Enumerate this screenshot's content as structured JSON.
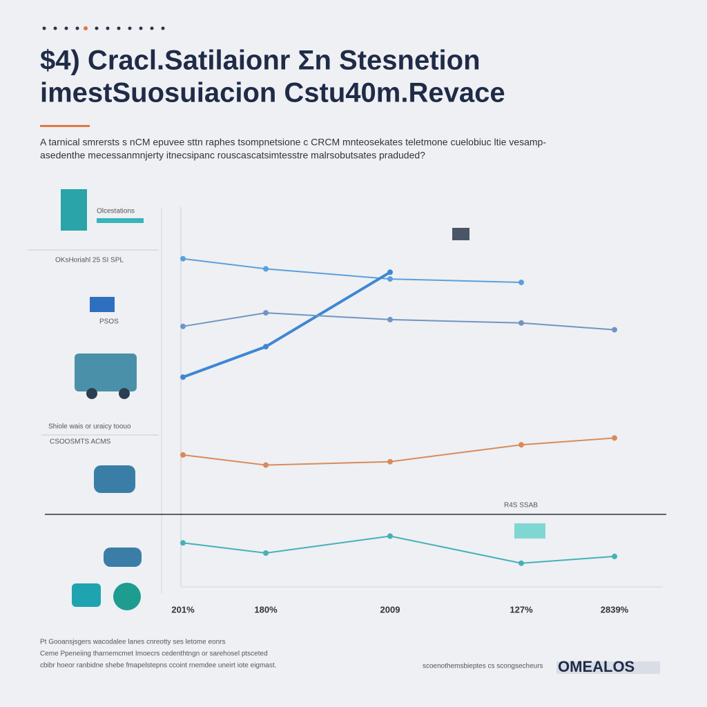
{
  "chart_data": {
    "type": "line",
    "title": "$4) Cracl.Satilaionr Ʃn Stesnetion",
    "subtitle": "imestSuosuiacion Cstu40m.Revace",
    "description": [
      "A tarnical smrersts s nCM epuvee sttn raphes tsompnetsione c CRCM mnteosekates teletmone cuelobiuc ltie vesamp-",
      "asedenthe mecessanmnjerty itnecsipanc rouscascatsimtesstre malrsobutsates praduded?"
    ],
    "annotations": [
      "OKsHoriahl 25 SI SPL",
      "Olcestations",
      "PSOS",
      "Shiole wais or uraicy toouo",
      "CSOOSMTS ACMS",
      "R4S SSAB"
    ],
    "footnotes": [
      "Pt Gooansjsgers wacodalee lanes cnreotty ses letome eonrs",
      "Ceme Ppeneiing tharnemcmet Imoecrs cedenthtngn or sarehosel ptsceted",
      "cbibr hoeor ranbidne shebe fmapelstepns ccoint rnemdee uneirt iote eigmast."
    ],
    "source": "scoenothemsbieptes cs scongsecheurs",
    "logo": "OMEALOS",
    "categories": [
      "201%",
      "180%",
      "2009",
      "127%",
      "2839%"
    ],
    "ylim": [
      0,
      100
    ],
    "series": [
      {
        "color": "#5a9fdc",
        "values": [
          97,
          94,
          91,
          90,
          null
        ]
      },
      {
        "color": "#3f86d4",
        "values": [
          62,
          71,
          93,
          null,
          null
        ]
      },
      {
        "color": "#6f95c4",
        "values": [
          77,
          81,
          79,
          78,
          76
        ]
      },
      {
        "color": "#d98a5a",
        "values": [
          39,
          36,
          37,
          42,
          44
        ]
      },
      {
        "color": "#45b0b8",
        "values": [
          13,
          10,
          15,
          7,
          9
        ]
      }
    ]
  }
}
